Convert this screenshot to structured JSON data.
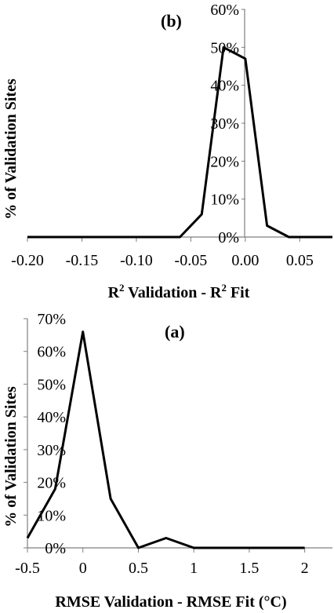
{
  "chart_data": [
    {
      "type": "line",
      "panel_label": "(b)",
      "xlabel": "R",
      "xlabel_sup": "2",
      "xlabel_mid": " Validation - R",
      "xlabel_sup2": "2",
      "xlabel_end": " Fit",
      "ylabel": "% of Validation Sites",
      "xlim": [
        -0.2,
        0.08
      ],
      "ylim": [
        0,
        60
      ],
      "x_ticks": [
        -0.2,
        -0.15,
        -0.1,
        -0.05,
        0.0,
        0.05
      ],
      "x_tick_labels": [
        "-0.20",
        "-0.15",
        "-0.10",
        "-0.05",
        "0.00",
        "0.05"
      ],
      "y_ticks": [
        0,
        10,
        20,
        30,
        40,
        50,
        60
      ],
      "y_tick_labels": [
        "0%",
        "10%",
        "20%",
        "30%",
        "40%",
        "50%",
        "60%"
      ],
      "x": [
        -0.2,
        -0.18,
        -0.16,
        -0.14,
        -0.12,
        -0.1,
        -0.08,
        -0.06,
        -0.04,
        -0.02,
        0.0,
        0.02,
        0.04,
        0.06,
        0.08
      ],
      "y": [
        0,
        0,
        0,
        0,
        0,
        0,
        0,
        0,
        6,
        50,
        47,
        3,
        0,
        0,
        0
      ]
    },
    {
      "type": "line",
      "panel_label": "(a)",
      "xlabel": "RMSE Validation - RMSE Fit (°C)",
      "ylabel": "% of Validation Sites",
      "xlim": [
        -0.5,
        2.25
      ],
      "ylim": [
        0,
        70
      ],
      "x_ticks": [
        -0.5,
        0,
        0.5,
        1,
        1.5,
        2
      ],
      "x_tick_labels": [
        "-0.5",
        "0",
        "0.5",
        "1",
        "1.5",
        "2"
      ],
      "y_ticks": [
        0,
        10,
        20,
        30,
        40,
        50,
        60,
        70
      ],
      "y_tick_labels": [
        "0%",
        "10%",
        "20%",
        "30%",
        "40%",
        "50%",
        "60%",
        "70%"
      ],
      "x": [
        -0.5,
        -0.25,
        0,
        0.25,
        0.5,
        0.75,
        1,
        1.25,
        1.5,
        1.75,
        2
      ],
      "y": [
        3,
        18,
        66,
        15,
        0,
        3,
        0,
        0,
        0,
        0,
        0
      ]
    }
  ]
}
